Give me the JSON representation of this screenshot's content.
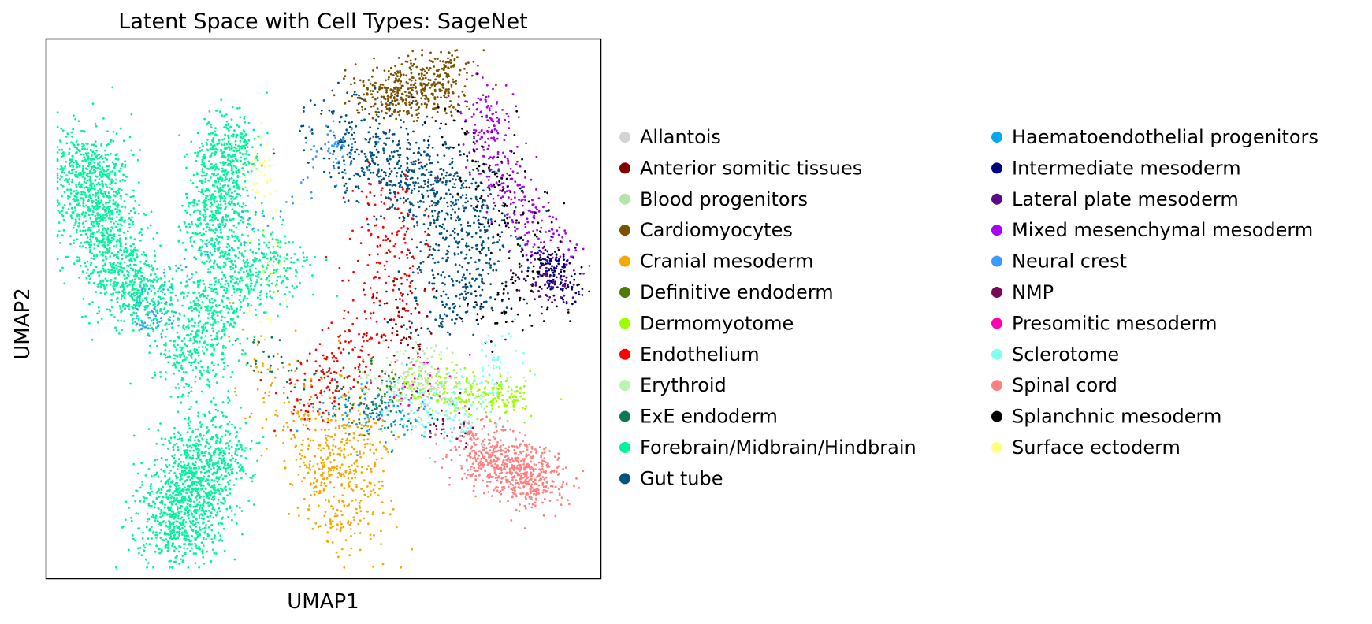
{
  "chart_data": {
    "type": "scatter",
    "title": "Latent Space with Cell Types: SageNet",
    "xlabel": "UMAP1",
    "ylabel": "UMAP2",
    "xlim": [
      0,
      1
    ],
    "ylim": [
      0,
      1
    ],
    "grid": false,
    "ticks": false,
    "legend_placement": "right-outside, two columns",
    "categories": [
      {
        "name": "Allantois",
        "color": "#d3d3d3"
      },
      {
        "name": "Anterior somitic tissues",
        "color": "#800000"
      },
      {
        "name": "Blood progenitors",
        "color": "#b4e6a8"
      },
      {
        "name": "Cardiomyocytes",
        "color": "#7a5200"
      },
      {
        "name": "Cranial mesoderm",
        "color": "#f5a800"
      },
      {
        "name": "Definitive endoderm",
        "color": "#4d7a0a"
      },
      {
        "name": "Dermomyotome",
        "color": "#9bff00"
      },
      {
        "name": "Endothelium",
        "color": "#ff0000"
      },
      {
        "name": "Erythroid",
        "color": "#b8f5b0"
      },
      {
        "name": "ExE endoderm",
        "color": "#0a7a55"
      },
      {
        "name": "Forebrain/Midbrain/Hindbrain",
        "color": "#00f59b"
      },
      {
        "name": "Gut tube",
        "color": "#005080"
      },
      {
        "name": "Haematoendothelial progenitors",
        "color": "#00a8f5"
      },
      {
        "name": "Intermediate mesoderm",
        "color": "#000080"
      },
      {
        "name": "Lateral plate mesoderm",
        "color": "#5c0a8c"
      },
      {
        "name": "Mixed mesenchymal mesoderm",
        "color": "#a800f5"
      },
      {
        "name": "Neural crest",
        "color": "#3d9bff"
      },
      {
        "name": "NMP",
        "color": "#7a0a55"
      },
      {
        "name": "Presomitic mesoderm",
        "color": "#ff00b4"
      },
      {
        "name": "Sclerotome",
        "color": "#80fff5"
      },
      {
        "name": "Spinal cord",
        "color": "#ff8080"
      },
      {
        "name": "Splanchnic mesoderm",
        "color": "#000000"
      },
      {
        "name": "Surface ectoderm",
        "color": "#ffff80"
      }
    ],
    "clusters": [
      {
        "category": "Forebrain/Midbrain/Hindbrain",
        "n": 1300,
        "path": [
          [
            0.07,
            0.79
          ],
          [
            0.09,
            0.7
          ],
          [
            0.13,
            0.57
          ],
          [
            0.19,
            0.49
          ]
        ],
        "spread": 0.035
      },
      {
        "category": "Forebrain/Midbrain/Hindbrain",
        "n": 700,
        "path": [
          [
            0.33,
            0.83
          ],
          [
            0.31,
            0.73
          ],
          [
            0.3,
            0.62
          ]
        ],
        "spread": 0.03
      },
      {
        "category": "Forebrain/Midbrain/Hindbrain",
        "n": 800,
        "path": [
          [
            0.43,
            0.59
          ],
          [
            0.34,
            0.56
          ],
          [
            0.28,
            0.47
          ],
          [
            0.26,
            0.38
          ]
        ],
        "spread": 0.035
      },
      {
        "category": "Forebrain/Midbrain/Hindbrain",
        "n": 1200,
        "path": [
          [
            0.3,
            0.26
          ],
          [
            0.26,
            0.16
          ],
          [
            0.23,
            0.07
          ]
        ],
        "spread": 0.04
      },
      {
        "category": "Cardiomyocytes",
        "n": 450,
        "path": [
          [
            0.58,
            0.89
          ],
          [
            0.67,
            0.91
          ],
          [
            0.73,
            0.93
          ]
        ],
        "spread": 0.03
      },
      {
        "category": "Mixed mesenchymal mesoderm",
        "n": 300,
        "path": [
          [
            0.79,
            0.9
          ],
          [
            0.8,
            0.78
          ],
          [
            0.86,
            0.67
          ],
          [
            0.93,
            0.6
          ]
        ],
        "spread": 0.025
      },
      {
        "category": "Gut tube",
        "n": 900,
        "path": [
          [
            0.53,
            0.84
          ],
          [
            0.62,
            0.76
          ],
          [
            0.72,
            0.72
          ],
          [
            0.77,
            0.62
          ],
          [
            0.72,
            0.5
          ]
        ],
        "spread": 0.045
      },
      {
        "category": "Splanchnic mesoderm",
        "n": 220,
        "path": [
          [
            0.72,
            0.86
          ],
          [
            0.82,
            0.72
          ],
          [
            0.9,
            0.55
          ],
          [
            0.78,
            0.5
          ]
        ],
        "spread": 0.035
      },
      {
        "category": "Intermediate mesoderm",
        "n": 120,
        "path": [
          [
            0.9,
            0.6
          ],
          [
            0.94,
            0.53
          ]
        ],
        "spread": 0.02
      },
      {
        "category": "Endothelium",
        "n": 320,
        "path": [
          [
            0.62,
            0.74
          ],
          [
            0.63,
            0.58
          ],
          [
            0.55,
            0.4
          ],
          [
            0.46,
            0.33
          ]
        ],
        "spread": 0.035
      },
      {
        "category": "Dermomyotome",
        "n": 260,
        "path": [
          [
            0.64,
            0.36
          ],
          [
            0.77,
            0.34
          ],
          [
            0.86,
            0.34
          ]
        ],
        "spread": 0.02
      },
      {
        "category": "Cranial mesoderm",
        "n": 500,
        "path": [
          [
            0.55,
            0.3
          ],
          [
            0.52,
            0.2
          ],
          [
            0.55,
            0.1
          ],
          [
            0.38,
            0.42
          ]
        ],
        "spread": 0.04
      },
      {
        "category": "Spinal cord",
        "n": 650,
        "path": [
          [
            0.76,
            0.25
          ],
          [
            0.84,
            0.2
          ],
          [
            0.9,
            0.18
          ]
        ],
        "spread": 0.03
      },
      {
        "category": "Sclerotome",
        "n": 180,
        "path": [
          [
            0.66,
            0.33
          ],
          [
            0.74,
            0.28
          ],
          [
            0.82,
            0.44
          ]
        ],
        "spread": 0.03
      },
      {
        "category": "Neural crest",
        "n": 140,
        "path": [
          [
            0.51,
            0.82
          ],
          [
            0.53,
            0.78
          ],
          [
            0.16,
            0.5
          ],
          [
            0.2,
            0.47
          ]
        ],
        "spread": 0.02
      },
      {
        "category": "Haematoendothelial progenitors",
        "n": 120,
        "path": [
          [
            0.6,
            0.35
          ],
          [
            0.66,
            0.3
          ],
          [
            0.5,
            0.32
          ]
        ],
        "spread": 0.03
      },
      {
        "category": "Surface ectoderm",
        "n": 70,
        "path": [
          [
            0.38,
            0.8
          ],
          [
            0.4,
            0.74
          ],
          [
            0.41,
            0.46
          ]
        ],
        "spread": 0.02
      },
      {
        "category": "Anterior somitic tissues",
        "n": 60,
        "path": [
          [
            0.62,
            0.52
          ],
          [
            0.66,
            0.42
          ]
        ],
        "spread": 0.03
      },
      {
        "category": "ExE endoderm",
        "n": 80,
        "path": [
          [
            0.36,
            0.42
          ],
          [
            0.68,
            0.28
          ]
        ],
        "spread": 0.03
      },
      {
        "category": "Definitive endoderm",
        "n": 50,
        "path": [
          [
            0.56,
            0.3
          ],
          [
            0.62,
            0.36
          ]
        ],
        "spread": 0.03
      },
      {
        "category": "Lateral plate mesoderm",
        "n": 60,
        "path": [
          [
            0.88,
            0.56
          ],
          [
            0.93,
            0.52
          ]
        ],
        "spread": 0.02
      },
      {
        "category": "Presomitic mesoderm",
        "n": 30,
        "path": [
          [
            0.6,
            0.32
          ],
          [
            0.7,
            0.38
          ]
        ],
        "spread": 0.03
      },
      {
        "category": "Blood progenitors",
        "n": 60,
        "path": [
          [
            0.66,
            0.38
          ],
          [
            0.74,
            0.36
          ]
        ],
        "spread": 0.03
      },
      {
        "category": "Erythroid",
        "n": 60,
        "path": [
          [
            0.58,
            0.34
          ],
          [
            0.7,
            0.4
          ]
        ],
        "spread": 0.03
      },
      {
        "category": "NMP",
        "n": 30,
        "path": [
          [
            0.7,
            0.3
          ],
          [
            0.78,
            0.27
          ]
        ],
        "spread": 0.02
      },
      {
        "category": "Allantois",
        "n": 30,
        "path": [
          [
            0.62,
            0.38
          ],
          [
            0.72,
            0.33
          ]
        ],
        "spread": 0.03
      }
    ]
  }
}
